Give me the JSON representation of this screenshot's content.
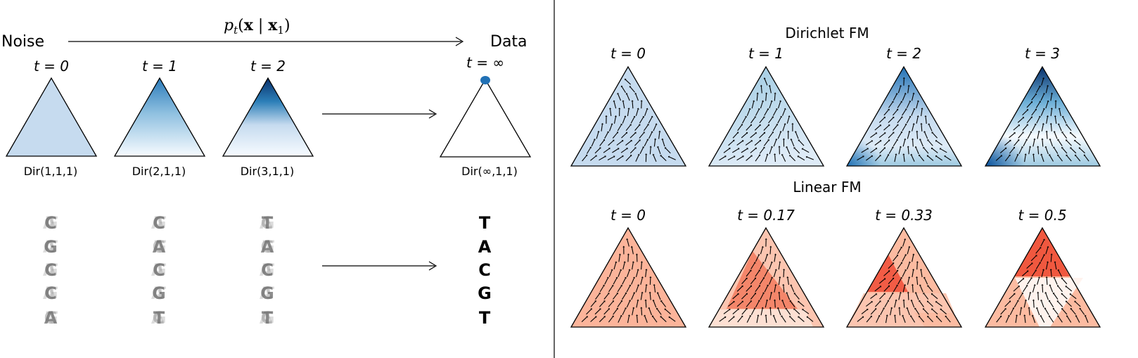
{
  "left_panel": {
    "noise_label": "Noise",
    "data_label": "Data",
    "path_label_p": "p",
    "path_label_t": "t",
    "path_label_x": "x",
    "path_label_bar": "|",
    "path_label_x1": "x",
    "path_label_sub1": "1",
    "columns": [
      {
        "t_label": "t = 0",
        "dist_label": "Dir(1,1,1)",
        "letters": [
          "C",
          "G",
          "C",
          "C",
          "A"
        ],
        "shade": "flat"
      },
      {
        "t_label": "t = 1",
        "dist_label": "Dir(2,1,1)",
        "letters": [
          "C",
          "A",
          "C",
          "G",
          "T"
        ],
        "shade": "light-gradient"
      },
      {
        "t_label": "t = 2",
        "dist_label": "Dir(3,1,1)",
        "letters": [
          "T",
          "A",
          "C",
          "G",
          "T"
        ],
        "shade": "dark-gradient"
      },
      {
        "t_label": "t = ∞",
        "dist_label": "Dir(∞,1,1)",
        "letters": [
          "T",
          "A",
          "C",
          "G",
          "T"
        ],
        "shade": "empty"
      }
    ]
  },
  "right_panel": {
    "dirichlet_title": "Dirichlet FM",
    "linear_title": "Linear FM",
    "dirichlet_times": [
      "t = 0",
      "t = 1",
      "t = 2",
      "t = 3"
    ],
    "linear_times": [
      "t = 0",
      "t = 0.17",
      "t = 0.33",
      "t = 0.5"
    ]
  },
  "colors": {
    "blue_light": "#c6dbef",
    "blue_mid": "#6baed6",
    "blue_dark": "#08306b",
    "blue_dot": "#2171b5",
    "red_light": "#fcbba1",
    "red_mid": "#fb6a4a",
    "red_pale": "#fee0d2"
  }
}
